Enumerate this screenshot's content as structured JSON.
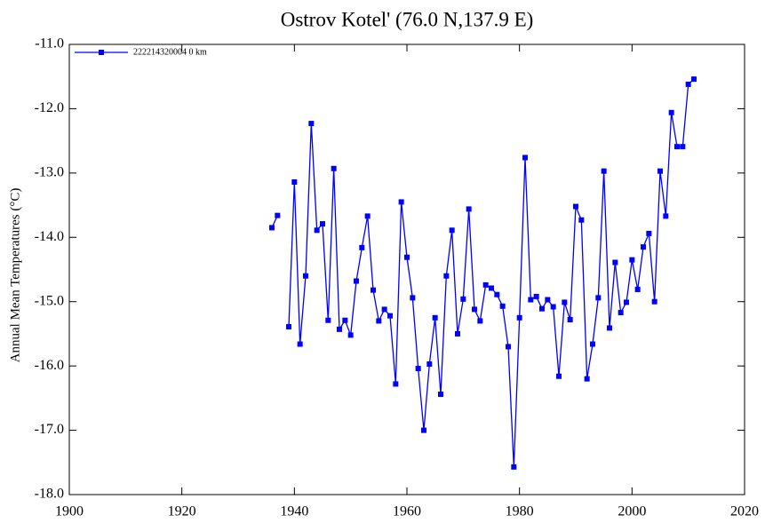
{
  "chart_data": {
    "type": "line",
    "title": "Ostrov Kotel' (76.0 N,137.9 E)",
    "y_label": "Annual Mean Temperatures (°C)",
    "x": [
      1936,
      1937,
      1938,
      1939,
      1940,
      1941,
      1942,
      1943,
      1944,
      1945,
      1946,
      1947,
      1948,
      1949,
      1950,
      1951,
      1952,
      1953,
      1954,
      1955,
      1956,
      1957,
      1958,
      1959,
      1960,
      1961,
      1962,
      1963,
      1964,
      1965,
      1966,
      1967,
      1968,
      1969,
      1970,
      1971,
      1972,
      1973,
      1974,
      1975,
      1976,
      1977,
      1978,
      1979,
      1980,
      1981,
      1982,
      1983,
      1984,
      1985,
      1986,
      1987,
      1988,
      1989,
      1990,
      1991,
      1992,
      1993,
      1994,
      1995,
      1996,
      1997,
      1998,
      1999,
      2000,
      2001,
      2002,
      2003,
      2004,
      2005,
      2006,
      2007,
      2008,
      2009,
      2010,
      2011
    ],
    "series": [
      {
        "name": "222214320004  0 km",
        "color": "#0000ff",
        "values": [
          -13.85,
          -13.66,
          null,
          -15.39,
          -13.14,
          -15.66,
          -14.6,
          -12.23,
          -13.89,
          -13.79,
          -15.29,
          -12.93,
          -15.43,
          -15.29,
          -15.52,
          -14.68,
          -14.16,
          -13.67,
          -14.82,
          -15.3,
          -15.12,
          -15.22,
          -16.28,
          -13.45,
          -14.31,
          -14.94,
          -16.04,
          -17.0,
          -15.97,
          -15.25,
          -16.44,
          -14.6,
          -13.89,
          -15.5,
          -14.96,
          -13.56,
          -15.12,
          -15.3,
          -14.74,
          -14.79,
          -14.89,
          -15.07,
          -15.7,
          -17.57,
          -15.25,
          -12.76,
          -14.97,
          -14.92,
          -15.11,
          -14.97,
          -15.08,
          -16.16,
          -15.01,
          -15.28,
          -13.52,
          -13.73,
          -16.2,
          -15.66,
          -14.94,
          -12.97,
          -15.41,
          -14.39,
          -15.17,
          -15.01,
          -14.35,
          -14.81,
          -14.15,
          -13.94,
          -15.0,
          -12.97,
          -13.67,
          -12.06,
          -12.59,
          -12.59,
          -11.62,
          -11.54
        ]
      }
    ],
    "xlim": [
      1900,
      2020
    ],
    "xticks": [
      1900,
      1920,
      1940,
      1960,
      1980,
      2000,
      2020
    ],
    "ylim": [
      -18,
      -11
    ],
    "yticks": [
      {
        "value": -18,
        "label": "-18.0"
      },
      {
        "value": -17,
        "label": "-17.0"
      },
      {
        "value": -16,
        "label": "-16.0"
      },
      {
        "value": -15,
        "label": "-15.0"
      },
      {
        "value": -14,
        "label": "-14.0"
      },
      {
        "value": -13,
        "label": "-13.0"
      },
      {
        "value": -12,
        "label": "-12.0"
      },
      {
        "value": -11,
        "label": "-11.0"
      }
    ],
    "grid": false,
    "legend": "top-left"
  }
}
